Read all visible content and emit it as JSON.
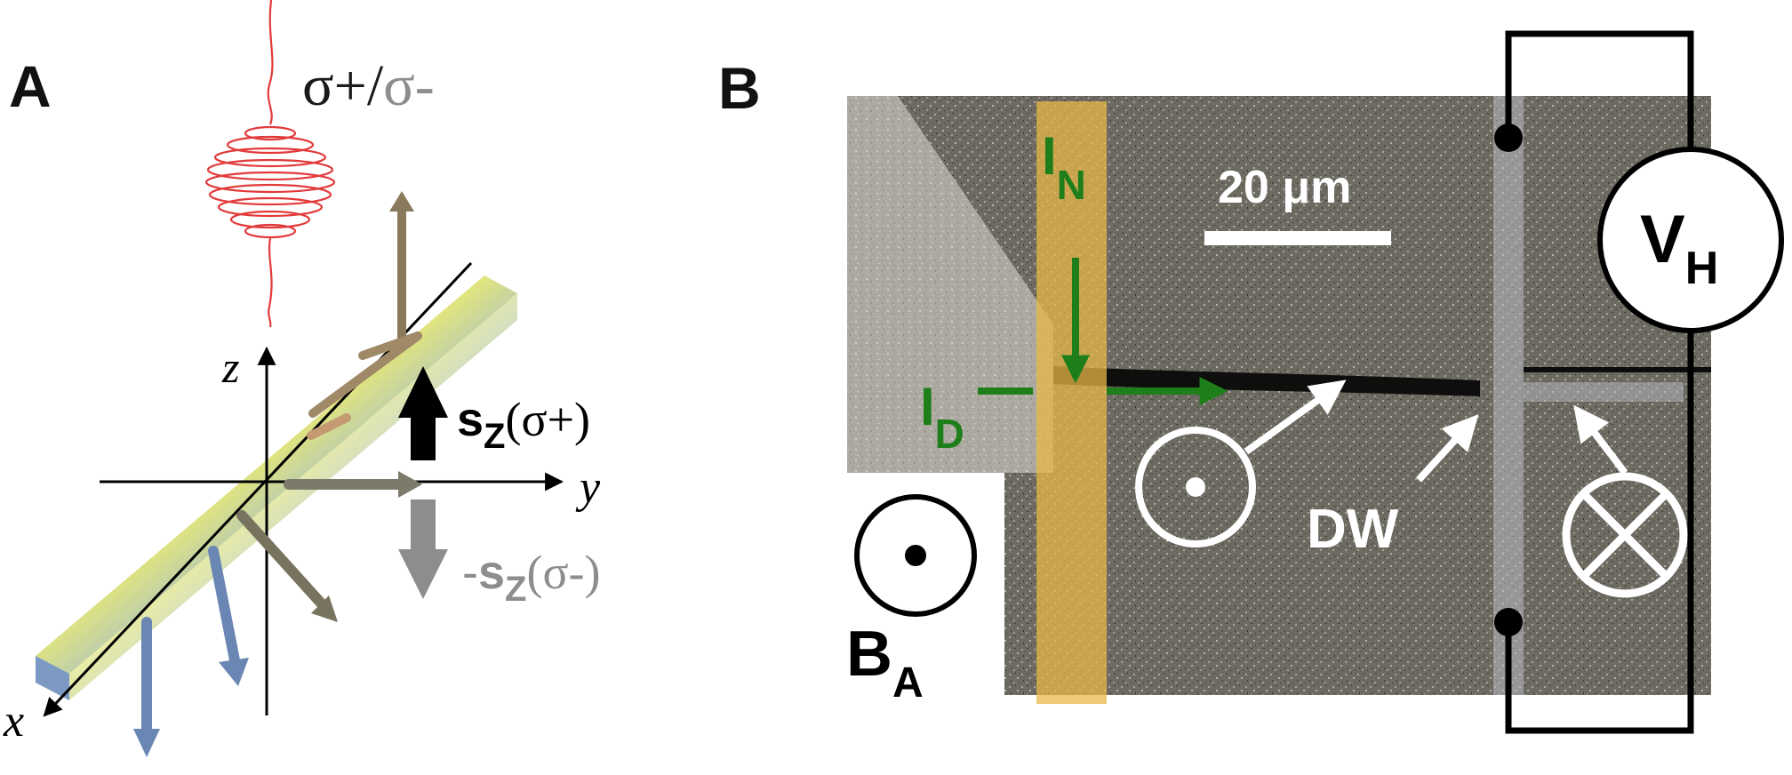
{
  "panel_a": {
    "label": "A",
    "polarization_label": {
      "sigma_plus": "σ+",
      "slash": "/",
      "sigma_minus": "σ-"
    },
    "axes": {
      "x": "x",
      "y": "y",
      "z": "z"
    },
    "spin_up": {
      "main": "s",
      "sub": "Z",
      "arg": "(σ+)"
    },
    "spin_down": {
      "prefix": "-",
      "main": "s",
      "sub": "Z",
      "arg": "(σ-)"
    }
  },
  "panel_b": {
    "label": "B",
    "current_n": {
      "main": "I",
      "sub": "N"
    },
    "current_d": {
      "main": "I",
      "sub": "D"
    },
    "scale_bar": "20 μm",
    "domain_wall": "DW",
    "field": {
      "main": "B",
      "sub": "A"
    },
    "voltmeter": {
      "main": "V",
      "sub": "H"
    }
  },
  "colors": {
    "laser": "#e23a3a",
    "current": "#1e7f1a",
    "gate": "#e8b84a",
    "bar_top": "#d98a8a",
    "bar_mid": "#e6e65a",
    "bar_bottom": "#5a7fb3",
    "spin_down": "#8d8d8d"
  }
}
